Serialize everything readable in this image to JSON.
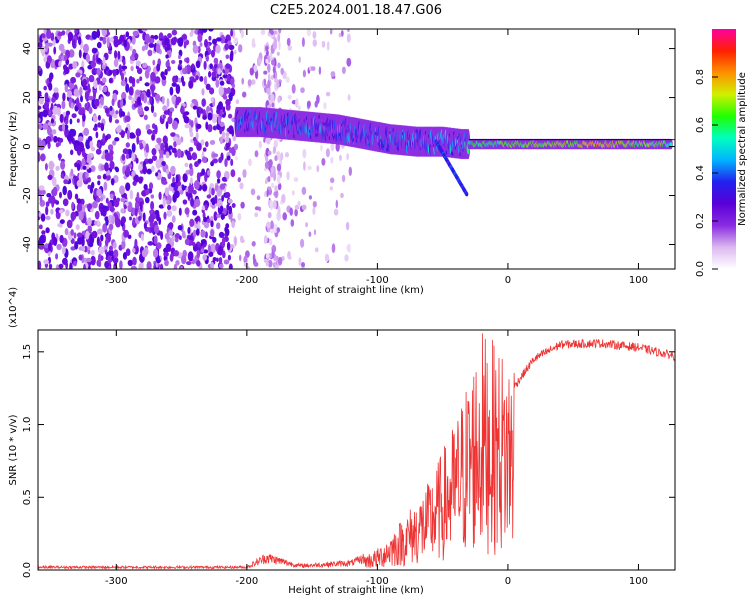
{
  "title": "C2E5.2024.001.18.47.G06",
  "chart_data": [
    {
      "type": "heatmap",
      "xlabel": "Height of straight line (km)",
      "ylabel": "Frequency (Hz)",
      "xlim": [
        -360,
        128
      ],
      "ylim": [
        -50,
        48
      ],
      "x_ticks": [
        -300,
        -200,
        -100,
        0,
        100
      ],
      "y_ticks": [
        -40,
        -20,
        0,
        20,
        40
      ],
      "colorbar": {
        "label": "Normalized spectral amplitude",
        "range": [
          0,
          1
        ],
        "ticks": [
          "0.0",
          "0.2",
          "0.4",
          "0.6",
          "0.8"
        ],
        "colors": [
          "#ffffff",
          "#dcb8f0",
          "#8a2be2",
          "#5a00d8",
          "#2222ee",
          "#00b4ff",
          "#00ffc0",
          "#20ff00",
          "#d0f000",
          "#ff9000",
          "#ff2000",
          "#ff00a0"
        ]
      },
      "noise_region_km": [
        -360,
        -210
      ],
      "sparse_region_km": [
        -210,
        -120
      ],
      "signal_track": [
        {
          "x": -208,
          "f": 10,
          "amp": 0.4
        },
        {
          "x": -190,
          "f": 10,
          "amp": 0.45
        },
        {
          "x": -170,
          "f": 9,
          "amp": 0.45
        },
        {
          "x": -150,
          "f": 8,
          "amp": 0.45
        },
        {
          "x": -130,
          "f": 7,
          "amp": 0.45
        },
        {
          "x": -110,
          "f": 5,
          "amp": 0.45
        },
        {
          "x": -90,
          "f": 3,
          "amp": 0.45
        },
        {
          "x": -70,
          "f": 2,
          "amp": 0.45
        },
        {
          "x": -50,
          "f": 2,
          "amp": 0.5
        },
        {
          "x": -35,
          "f": 1,
          "amp": 0.5
        },
        {
          "x": -25,
          "f": 1,
          "amp": 0.6
        },
        {
          "x": 0,
          "f": 1,
          "amp": 0.65
        },
        {
          "x": 40,
          "f": 1,
          "amp": 0.75
        },
        {
          "x": 75,
          "f": 1,
          "amp": 0.8
        },
        {
          "x": 100,
          "f": 1,
          "amp": 0.7
        },
        {
          "x": 125,
          "f": 1,
          "amp": 0.65
        }
      ]
    },
    {
      "type": "line",
      "xlabel": "Height of straight line (km)",
      "ylabel": "SNR (10 * v/v)",
      "scale_label": "(x10^4)",
      "xlim": [
        -360,
        128
      ],
      "ylim": [
        0,
        1.65
      ],
      "x_ticks": [
        -300,
        -200,
        -100,
        0,
        100
      ],
      "y_ticks": [
        0.0,
        0.5,
        1.0,
        1.5
      ],
      "y_tick_labels": [
        "0.0",
        "0.5",
        "1.0",
        "1.5"
      ],
      "color": "#ee3333",
      "envelope": [
        {
          "x": -360,
          "y": 0.02
        },
        {
          "x": -300,
          "y": 0.02
        },
        {
          "x": -200,
          "y": 0.02
        },
        {
          "x": -185,
          "y": 0.09
        },
        {
          "x": -160,
          "y": 0.03
        },
        {
          "x": -120,
          "y": 0.05
        },
        {
          "x": -100,
          "y": 0.12
        },
        {
          "x": -80,
          "y": 0.3
        },
        {
          "x": -60,
          "y": 0.5
        },
        {
          "x": -40,
          "y": 0.85
        },
        {
          "x": -20,
          "y": 1.35
        },
        {
          "x": 0,
          "y": 1.2
        },
        {
          "x": 20,
          "y": 1.45
        },
        {
          "x": 40,
          "y": 1.55
        },
        {
          "x": 70,
          "y": 1.56
        },
        {
          "x": 100,
          "y": 1.53
        },
        {
          "x": 128,
          "y": 1.47
        }
      ]
    }
  ]
}
